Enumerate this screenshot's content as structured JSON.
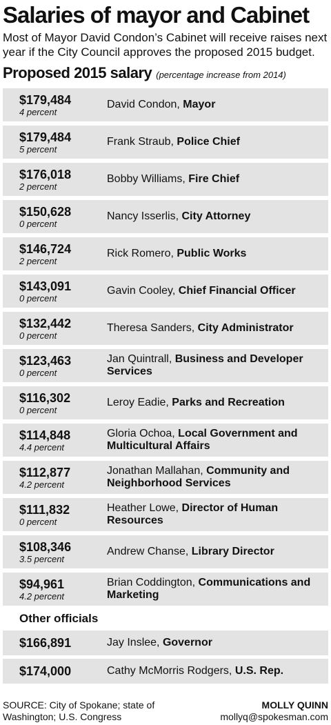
{
  "header": {
    "title": "Salaries of mayor and Cabinet",
    "subtitle": "Most of Mayor David Condon’s Cabinet will receive raises next year if the City Council approves the proposed 2015 budget.",
    "section": "Proposed 2015 salary",
    "section_note": "(percentage increase from 2014)"
  },
  "rows": [
    {
      "salary": "$179,484",
      "percent": "4 percent",
      "name": "David Condon,",
      "role": "Mayor"
    },
    {
      "salary": "$179,484",
      "percent": "5 percent",
      "name": "Frank Straub,",
      "role": "Police Chief"
    },
    {
      "salary": "$176,018",
      "percent": "2 percent",
      "name": "Bobby Williams,",
      "role": "Fire Chief"
    },
    {
      "salary": "$150,628",
      "percent": "0 percent",
      "name": "Nancy Isserlis,",
      "role": "City Attorney"
    },
    {
      "salary": "$146,724",
      "percent": "2 percent",
      "name": "Rick Romero,",
      "role": "Public Works"
    },
    {
      "salary": "$143,091",
      "percent": "0 percent",
      "name": "Gavin Cooley,",
      "role": "Chief Financial Officer"
    },
    {
      "salary": "$132,442",
      "percent": "0 percent",
      "name": "Theresa Sanders,",
      "role": "City Administrator"
    },
    {
      "salary": "$123,463",
      "percent": "0 percent",
      "name": "Jan Quintrall,",
      "role": "Business and Developer Services"
    },
    {
      "salary": "$116,302",
      "percent": "0 percent",
      "name": "Leroy Eadie,",
      "role": "Parks and Recreation"
    },
    {
      "salary": "$114,848",
      "percent": "4.4 percent",
      "name": "Gloria Ochoa,",
      "role": "Local Government and Multicultural Affairs"
    },
    {
      "salary": "$112,877",
      "percent": "4.2 percent",
      "name": "Jonathan Mallahan,",
      "role": "Community and Neighborhood Services"
    },
    {
      "salary": "$111,832",
      "percent": "0 percent",
      "name": "Heather Lowe,",
      "role": "Director of Human Resources"
    },
    {
      "salary": "$108,346",
      "percent": "3.5 percent",
      "name": "Andrew Chanse,",
      "role": "Library Director"
    },
    {
      "salary": "$94,961",
      "percent": "4.2 percent",
      "name": "Brian Coddington,",
      "role": "Communications and Marketing"
    }
  ],
  "other": {
    "heading": "Other officials",
    "rows": [
      {
        "salary": "$166,891",
        "name": "Jay Inslee,",
        "role": "Governor"
      },
      {
        "salary": "$174,000",
        "name": "Cathy McMorris Rodgers,",
        "role": "U.S. Rep."
      }
    ]
  },
  "footer": {
    "source": "SOURCE: City of Spokane; state of Washington; U.S. Congress",
    "author": "MOLLY QUINN",
    "email": "mollyq@spokesman.com"
  }
}
